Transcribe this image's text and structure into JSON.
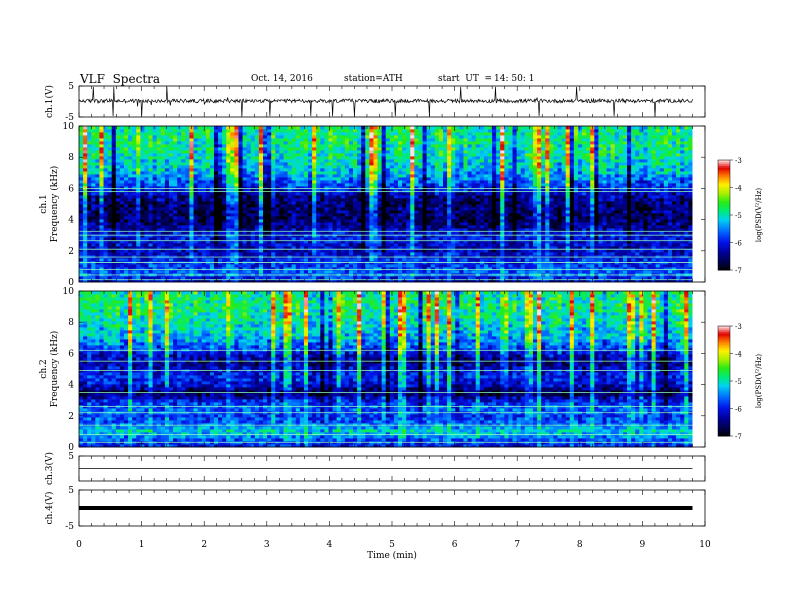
{
  "header": {
    "title": "VLF  Spectra",
    "date": "Oct. 14, 2016",
    "station": "station=ATH",
    "start_ut_label": "start  UT  =",
    "start_ut_value": "14: 50: 1"
  },
  "chart_data": [
    {
      "type": "line",
      "id": "ch1",
      "ylabel": "ch.1(V)",
      "ylim": [
        -5,
        5
      ],
      "yticks": [
        "5",
        "-5"
      ],
      "xlim": [
        0,
        10
      ],
      "data_end_min": 9.8,
      "baseline_v": 0.2,
      "noise_amplitude_v": 0.6,
      "spikes_min": [
        0.23,
        0.55,
        1.0,
        1.4,
        2.6,
        3.05,
        3.7,
        4.05,
        4.4,
        5.05,
        5.6,
        6.1,
        6.65,
        7.35,
        7.95,
        8.55,
        9.2
      ]
    },
    {
      "type": "heatmap",
      "id": "spec1",
      "ylabel": "ch.1",
      "ylabel2": "Frequency  (kHz)",
      "ylim": [
        0,
        10
      ],
      "yticks": [
        "0",
        "2",
        "4",
        "6",
        "8",
        "10"
      ],
      "xlim": [
        0,
        10
      ],
      "data_end_min": 9.8,
      "colorbar": {
        "label": "log(PSD(V²/Hz)",
        "ticks": [
          "-3",
          "-4",
          "-5",
          "-6",
          "-7"
        ],
        "range": [
          -7,
          -3
        ]
      },
      "bands_khz": [
        0.15,
        0.45,
        0.8,
        1.25,
        1.6,
        2.1,
        2.65,
        3.0,
        3.25,
        5.8,
        6.0
      ],
      "mean_log_psd_by_khz": [
        {
          "khz": 0.0,
          "value": -6.3
        },
        {
          "khz": 0.5,
          "value": -5.6
        },
        {
          "khz": 1.0,
          "value": -5.8
        },
        {
          "khz": 1.5,
          "value": -5.9
        },
        {
          "khz": 2.0,
          "value": -6.2
        },
        {
          "khz": 2.5,
          "value": -6.1
        },
        {
          "khz": 3.0,
          "value": -6.0
        },
        {
          "khz": 3.5,
          "value": -6.4
        },
        {
          "khz": 4.0,
          "value": -6.6
        },
        {
          "khz": 5.0,
          "value": -6.55
        },
        {
          "khz": 5.5,
          "value": -6.4
        },
        {
          "khz": 6.0,
          "value": -5.9
        },
        {
          "khz": 7.0,
          "value": -5.3
        },
        {
          "khz": 8.0,
          "value": -5.0
        },
        {
          "khz": 9.0,
          "value": -4.85
        },
        {
          "khz": 10.0,
          "value": -4.9
        }
      ]
    },
    {
      "type": "heatmap",
      "id": "spec2",
      "ylabel": "ch.2",
      "ylabel2": "Frequency  (kHz)",
      "ylim": [
        0,
        10
      ],
      "yticks": [
        "0",
        "2",
        "4",
        "6",
        "8",
        "10"
      ],
      "xlim": [
        0,
        10
      ],
      "data_end_min": 9.8,
      "colorbar": {
        "label": "log(PSD(V²/Hz)",
        "ticks": [
          "-3",
          "-4",
          "-5",
          "-6",
          "-7"
        ],
        "range": [
          -7,
          -3
        ]
      },
      "bands_khz": [
        0.3,
        0.8,
        1.4,
        2.2,
        2.6,
        3.5,
        4.9,
        5.5,
        6.2
      ],
      "mean_log_psd_by_khz": [
        {
          "khz": 0.0,
          "value": -6.0
        },
        {
          "khz": 0.5,
          "value": -5.7
        },
        {
          "khz": 1.0,
          "value": -5.1
        },
        {
          "khz": 1.5,
          "value": -5.6
        },
        {
          "khz": 2.0,
          "value": -5.8
        },
        {
          "khz": 2.5,
          "value": -5.6
        },
        {
          "khz": 3.0,
          "value": -6.0
        },
        {
          "khz": 3.5,
          "value": -6.7
        },
        {
          "khz": 4.0,
          "value": -6.1
        },
        {
          "khz": 4.5,
          "value": -5.9
        },
        {
          "khz": 5.0,
          "value": -6.1
        },
        {
          "khz": 5.5,
          "value": -6.5
        },
        {
          "khz": 6.0,
          "value": -6.0
        },
        {
          "khz": 7.0,
          "value": -5.3
        },
        {
          "khz": 8.0,
          "value": -5.0
        },
        {
          "khz": 9.0,
          "value": -4.8
        },
        {
          "khz": 10.0,
          "value": -4.9
        }
      ]
    },
    {
      "type": "line",
      "id": "ch3",
      "ylabel": "ch.3(V)",
      "ylim": [
        -5,
        5
      ],
      "yticks": [
        "5"
      ],
      "xlim": [
        0,
        10
      ],
      "data_end_min": 9.8,
      "value_v": 0.0
    },
    {
      "type": "line",
      "id": "ch4",
      "ylabel": "ch.4(V)",
      "ylim": [
        -5,
        5
      ],
      "yticks": [
        "5",
        "-5"
      ],
      "xlim": [
        0,
        10
      ],
      "data_end_min": 9.8,
      "value_v": 0.0,
      "xlabel": "Time  (min)",
      "xticks": [
        "0",
        "1",
        "2",
        "3",
        "4",
        "5",
        "6",
        "7",
        "8",
        "9",
        "10"
      ]
    }
  ]
}
